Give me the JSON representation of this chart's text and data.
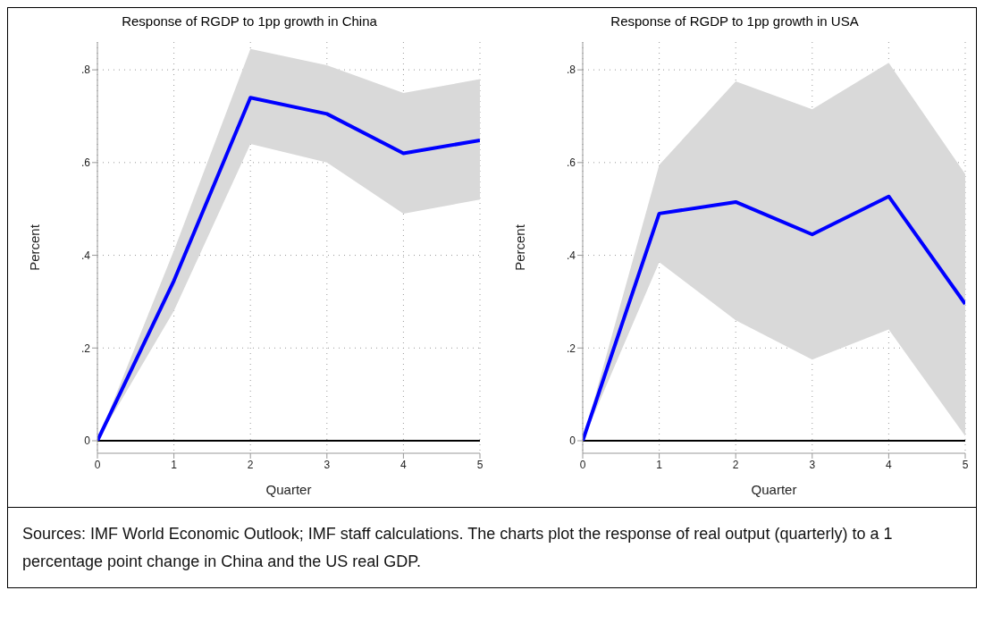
{
  "chart_data": [
    {
      "type": "line",
      "title": "Response of RGDP to 1pp growth in China",
      "xlabel": "Quarter",
      "ylabel": "Percent",
      "x": [
        0,
        1,
        2,
        3,
        4,
        5
      ],
      "series": [
        {
          "color": "#0000ff",
          "values": [
            0,
            0.345,
            0.74,
            0.705,
            0.62,
            0.648
          ],
          "lower": [
            0,
            0.28,
            0.64,
            0.6,
            0.49,
            0.52
          ],
          "upper": [
            0,
            0.41,
            0.845,
            0.81,
            0.75,
            0.78
          ]
        }
      ],
      "xlim": [
        0,
        5
      ],
      "xticks": [
        0,
        1,
        2,
        3,
        4,
        5
      ],
      "ylim": [
        0,
        0.86
      ],
      "yticks": [
        0,
        {
          "value": 0.2,
          "label": ".2"
        },
        {
          "value": 0.4,
          "label": ".4"
        },
        {
          "value": 0.6,
          "label": ".6"
        },
        {
          "value": 0.8,
          "label": ".8"
        }
      ],
      "grid": true,
      "ref_lines": [
        {
          "axis": "y",
          "value": 0,
          "color": "#000000"
        }
      ]
    },
    {
      "type": "line",
      "title": "Response of RGDP to 1pp growth in USA",
      "xlabel": "Quarter",
      "ylabel": "Percent",
      "x": [
        0,
        1,
        2,
        3,
        4,
        5
      ],
      "series": [
        {
          "color": "#0000ff",
          "values": [
            0,
            0.49,
            0.515,
            0.445,
            0.527,
            0.295
          ],
          "lower": [
            0,
            0.385,
            0.26,
            0.175,
            0.24,
            0.01
          ],
          "upper": [
            0,
            0.595,
            0.775,
            0.715,
            0.815,
            0.575
          ]
        }
      ],
      "xlim": [
        0,
        5
      ],
      "xticks": [
        0,
        1,
        2,
        3,
        4,
        5
      ],
      "ylim": [
        0,
        0.86
      ],
      "yticks": [
        0,
        {
          "value": 0.2,
          "label": ".2"
        },
        {
          "value": 0.4,
          "label": ".4"
        },
        {
          "value": 0.6,
          "label": ".6"
        },
        {
          "value": 0.8,
          "label": ".8"
        }
      ],
      "grid": true,
      "ref_lines": [
        {
          "axis": "y",
          "value": 0,
          "color": "#000000"
        }
      ],
      "annotations": [
        "Sources: IMF World Economic Outlook; IMF staff calculations. The charts plot the response of real output (quarterly) to a 1 percentage point change in China and the US real GDP."
      ]
    }
  ]
}
